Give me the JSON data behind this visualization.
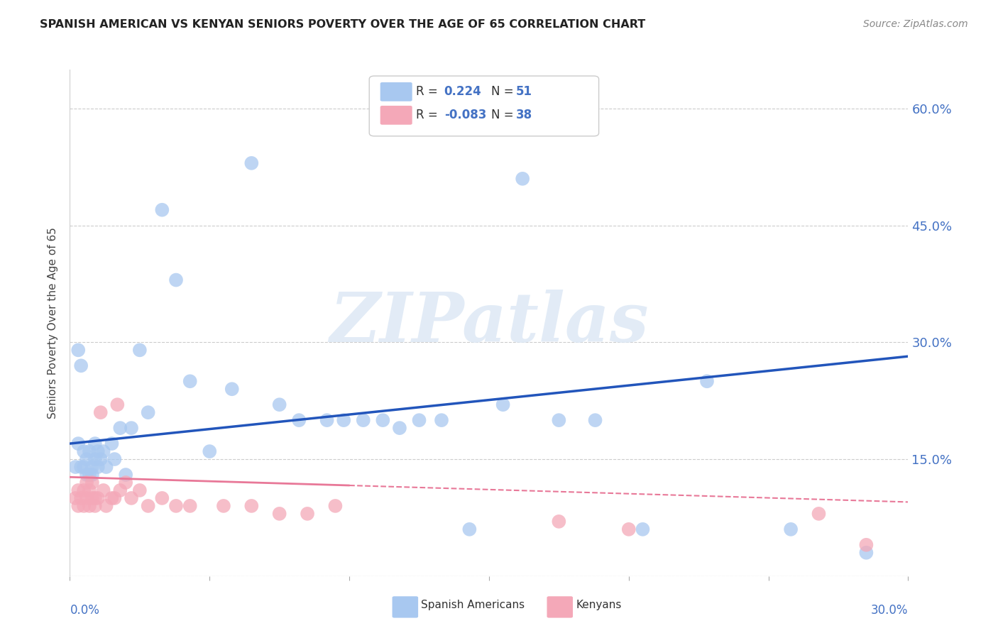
{
  "title": "SPANISH AMERICAN VS KENYAN SENIORS POVERTY OVER THE AGE OF 65 CORRELATION CHART",
  "source": "Source: ZipAtlas.com",
  "ylabel": "Seniors Poverty Over the Age of 65",
  "xlim": [
    0.0,
    0.3
  ],
  "ylim": [
    0.0,
    0.65
  ],
  "yticks": [
    0.0,
    0.15,
    0.3,
    0.45,
    0.6
  ],
  "ytick_labels": [
    "",
    "15.0%",
    "30.0%",
    "45.0%",
    "60.0%"
  ],
  "background_color": "#ffffff",
  "watermark_text": "ZIPatlas",
  "spanish_color": "#a8c8f0",
  "kenyan_color": "#f4a8b8",
  "spanish_line_color": "#2255bb",
  "kenyan_line_color": "#e87898",
  "spanish_x": [
    0.002,
    0.003,
    0.003,
    0.004,
    0.004,
    0.005,
    0.005,
    0.006,
    0.006,
    0.007,
    0.007,
    0.008,
    0.008,
    0.009,
    0.009,
    0.01,
    0.01,
    0.011,
    0.012,
    0.013,
    0.015,
    0.016,
    0.018,
    0.02,
    0.022,
    0.025,
    0.028,
    0.033,
    0.038,
    0.043,
    0.05,
    0.058,
    0.065,
    0.075,
    0.082,
    0.092,
    0.098,
    0.105,
    0.112,
    0.118,
    0.125,
    0.133,
    0.143,
    0.155,
    0.162,
    0.175,
    0.188,
    0.205,
    0.228,
    0.258,
    0.285
  ],
  "spanish_y": [
    0.14,
    0.17,
    0.29,
    0.14,
    0.27,
    0.14,
    0.16,
    0.13,
    0.15,
    0.13,
    0.16,
    0.14,
    0.13,
    0.15,
    0.17,
    0.14,
    0.16,
    0.15,
    0.16,
    0.14,
    0.17,
    0.15,
    0.19,
    0.13,
    0.19,
    0.29,
    0.21,
    0.47,
    0.38,
    0.25,
    0.16,
    0.24,
    0.53,
    0.22,
    0.2,
    0.2,
    0.2,
    0.2,
    0.2,
    0.19,
    0.2,
    0.2,
    0.06,
    0.22,
    0.51,
    0.2,
    0.2,
    0.06,
    0.25,
    0.06,
    0.03
  ],
  "kenyan_x": [
    0.002,
    0.003,
    0.003,
    0.004,
    0.005,
    0.005,
    0.006,
    0.006,
    0.007,
    0.007,
    0.008,
    0.008,
    0.009,
    0.009,
    0.01,
    0.011,
    0.012,
    0.013,
    0.015,
    0.016,
    0.017,
    0.018,
    0.02,
    0.022,
    0.025,
    0.028,
    0.033,
    0.038,
    0.043,
    0.055,
    0.065,
    0.075,
    0.085,
    0.095,
    0.175,
    0.2,
    0.268,
    0.285
  ],
  "kenyan_y": [
    0.1,
    0.09,
    0.11,
    0.1,
    0.09,
    0.11,
    0.1,
    0.12,
    0.09,
    0.11,
    0.1,
    0.12,
    0.1,
    0.09,
    0.1,
    0.21,
    0.11,
    0.09,
    0.1,
    0.1,
    0.22,
    0.11,
    0.12,
    0.1,
    0.11,
    0.09,
    0.1,
    0.09,
    0.09,
    0.09,
    0.09,
    0.08,
    0.08,
    0.09,
    0.07,
    0.06,
    0.08,
    0.04
  ]
}
